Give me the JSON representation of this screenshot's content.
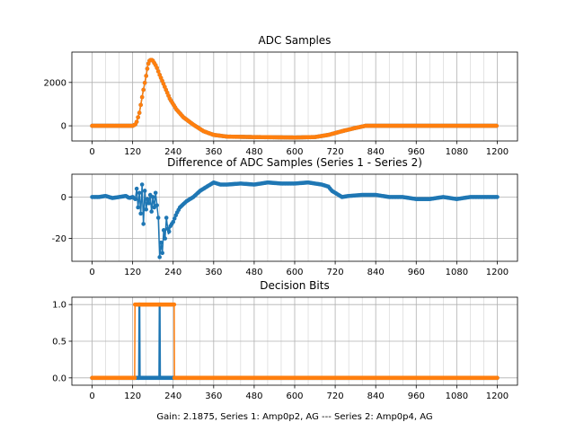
{
  "figure": {
    "footer": "Gain: 2.1875, Series 1: Amp0p2, AG --- Series 2: Amp0p4, AG",
    "colors": {
      "series1": "#1f77b4",
      "series2": "#ff7f0e",
      "grid": "#b0b0b0"
    }
  },
  "chart_data": [
    {
      "type": "line",
      "title": "ADC Samples",
      "xlabel": "",
      "ylabel": "",
      "xlim": [
        -60,
        1260
      ],
      "ylim": [
        -700,
        3400
      ],
      "xticks": [
        0,
        120,
        240,
        360,
        480,
        600,
        720,
        840,
        960,
        1080,
        1200
      ],
      "yticks": [
        -2000,
        0,
        2000
      ],
      "grid": true,
      "markers": true,
      "series": [
        {
          "color": "#1f77b4",
          "points": [
            [
              0,
              0
            ],
            [
              100,
              0
            ],
            [
              120,
              0
            ],
            [
              130,
              80
            ],
            [
              140,
              600
            ],
            [
              150,
              1500
            ],
            [
              160,
              2300
            ],
            [
              165,
              2800
            ],
            [
              170,
              3000
            ],
            [
              175,
              3050
            ],
            [
              180,
              3000
            ],
            [
              190,
              2750
            ],
            [
              200,
              2350
            ],
            [
              215,
              1800
            ],
            [
              230,
              1250
            ],
            [
              250,
              750
            ],
            [
              270,
              400
            ],
            [
              300,
              50
            ],
            [
              330,
              -250
            ],
            [
              360,
              -420
            ],
            [
              400,
              -500
            ],
            [
              480,
              -520
            ],
            [
              600,
              -540
            ],
            [
              660,
              -520
            ],
            [
              700,
              -420
            ],
            [
              740,
              -250
            ],
            [
              780,
              -100
            ],
            [
              810,
              0
            ],
            [
              900,
              0
            ],
            [
              1000,
              0
            ],
            [
              1100,
              0
            ],
            [
              1200,
              0
            ]
          ]
        },
        {
          "color": "#ff7f0e",
          "points": [
            [
              0,
              0
            ],
            [
              100,
              0
            ],
            [
              120,
              0
            ],
            [
              130,
              80
            ],
            [
              140,
              600
            ],
            [
              150,
              1500
            ],
            [
              160,
              2300
            ],
            [
              165,
              2800
            ],
            [
              170,
              3000
            ],
            [
              175,
              3050
            ],
            [
              180,
              3000
            ],
            [
              190,
              2750
            ],
            [
              200,
              2350
            ],
            [
              215,
              1800
            ],
            [
              230,
              1250
            ],
            [
              250,
              750
            ],
            [
              270,
              400
            ],
            [
              300,
              50
            ],
            [
              330,
              -250
            ],
            [
              360,
              -420
            ],
            [
              400,
              -500
            ],
            [
              480,
              -520
            ],
            [
              600,
              -540
            ],
            [
              660,
              -520
            ],
            [
              700,
              -420
            ],
            [
              740,
              -250
            ],
            [
              780,
              -100
            ],
            [
              810,
              0
            ],
            [
              900,
              0
            ],
            [
              1000,
              0
            ],
            [
              1100,
              0
            ],
            [
              1200,
              0
            ]
          ]
        }
      ]
    },
    {
      "type": "line",
      "title": "Difference of ADC Samples (Series 1 - Series 2)",
      "xlabel": "",
      "ylabel": "",
      "xlim": [
        -60,
        1260
      ],
      "ylim": [
        -31,
        11
      ],
      "xticks": [
        0,
        120,
        240,
        360,
        480,
        600,
        720,
        840,
        960,
        1080,
        1200
      ],
      "yticks": [
        -20,
        0
      ],
      "grid": true,
      "markers": true,
      "series": [
        {
          "color": "#1f77b4",
          "points": [
            [
              0,
              0
            ],
            [
              20,
              0
            ],
            [
              40,
              0.5
            ],
            [
              60,
              -0.5
            ],
            [
              80,
              0
            ],
            [
              100,
              0.5
            ],
            [
              110,
              -0.5
            ],
            [
              120,
              0
            ],
            [
              128,
              -1
            ],
            [
              132,
              4
            ],
            [
              136,
              -5
            ],
            [
              140,
              2
            ],
            [
              144,
              -8
            ],
            [
              148,
              6
            ],
            [
              152,
              -13
            ],
            [
              156,
              3
            ],
            [
              160,
              -6
            ],
            [
              164,
              -1
            ],
            [
              168,
              -3
            ],
            [
              172,
              1
            ],
            [
              176,
              -7
            ],
            [
              180,
              0
            ],
            [
              184,
              -5
            ],
            [
              188,
              2
            ],
            [
              192,
              -4
            ],
            [
              196,
              -10
            ],
            [
              200,
              -29
            ],
            [
              204,
              -22
            ],
            [
              208,
              -27
            ],
            [
              212,
              -16
            ],
            [
              216,
              -20
            ],
            [
              220,
              -10
            ],
            [
              226,
              -18
            ],
            [
              232,
              -14
            ],
            [
              240,
              -12
            ],
            [
              250,
              -8
            ],
            [
              260,
              -5
            ],
            [
              280,
              -2
            ],
            [
              300,
              0
            ],
            [
              320,
              3
            ],
            [
              340,
              5
            ],
            [
              360,
              7
            ],
            [
              380,
              6
            ],
            [
              400,
              6
            ],
            [
              440,
              6.5
            ],
            [
              480,
              6
            ],
            [
              520,
              7
            ],
            [
              560,
              6.5
            ],
            [
              600,
              6.5
            ],
            [
              640,
              7
            ],
            [
              680,
              6
            ],
            [
              700,
              5
            ],
            [
              710,
              3
            ],
            [
              720,
              2
            ],
            [
              740,
              0
            ],
            [
              760,
              0.5
            ],
            [
              800,
              1
            ],
            [
              840,
              1
            ],
            [
              880,
              0
            ],
            [
              920,
              0
            ],
            [
              960,
              -1
            ],
            [
              1000,
              -1
            ],
            [
              1040,
              0
            ],
            [
              1080,
              -1
            ],
            [
              1120,
              0
            ],
            [
              1160,
              0
            ],
            [
              1200,
              0
            ]
          ]
        }
      ]
    },
    {
      "type": "line",
      "title": "Decision Bits",
      "xlabel": "Gain: 2.1875, Series 1: Amp0p2, AG --- Series 2: Amp0p4, AG",
      "ylabel": "",
      "xlim": [
        -60,
        1260
      ],
      "ylim": [
        -0.1,
        1.1
      ],
      "xticks": [
        0,
        120,
        240,
        360,
        480,
        600,
        720,
        840,
        960,
        1080,
        1200
      ],
      "yticks": [
        0.0,
        0.5,
        1.0
      ],
      "ytick_labels": [
        "0.0",
        "0.5",
        "1.0"
      ],
      "grid": true,
      "markers": true,
      "series": [
        {
          "color": "#1f77b4",
          "steps": [
            [
              0,
              0
            ],
            [
              138,
              0
            ],
            [
              139,
              1
            ],
            [
              141,
              1
            ],
            [
              142,
              0
            ],
            [
              198,
              0
            ],
            [
              199,
              1
            ],
            [
              201,
              1
            ],
            [
              202,
              0
            ],
            [
              1200,
              0
            ]
          ]
        },
        {
          "color": "#ff7f0e",
          "steps": [
            [
              0,
              0
            ],
            [
              126,
              0
            ],
            [
              127,
              1
            ],
            [
              243,
              1
            ],
            [
              244,
              0
            ],
            [
              1200,
              0
            ]
          ]
        }
      ]
    }
  ]
}
